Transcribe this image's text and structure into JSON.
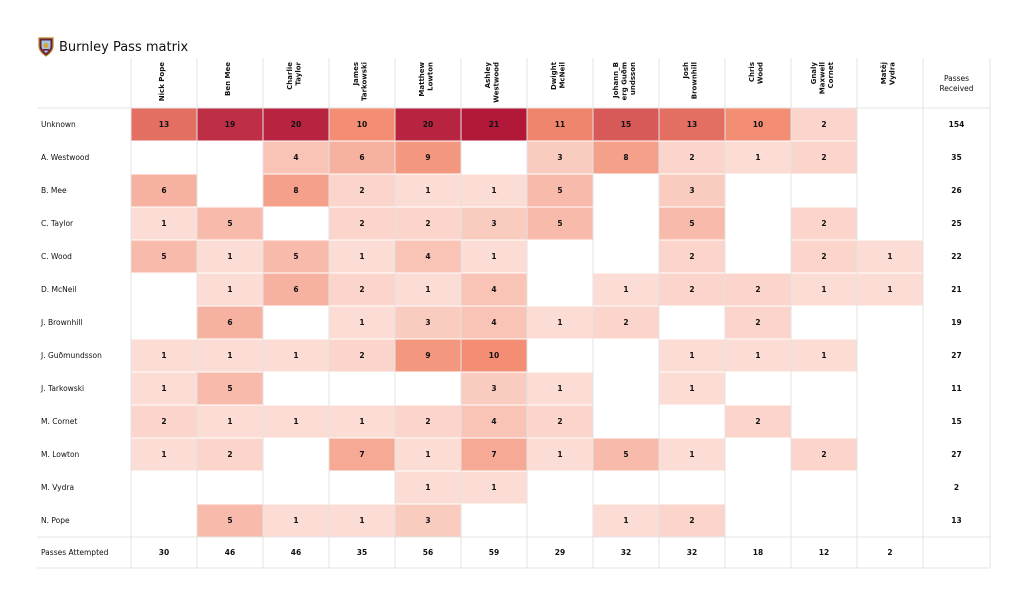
{
  "title": "Burnley Pass matrix",
  "logo": "burnley-crest",
  "colors": {
    "low": "#fde6e1",
    "high": "#b2183a",
    "line": "#dcdcdc"
  },
  "chart_data": {
    "type": "heatmap",
    "title": "Burnley Pass matrix",
    "columns": [
      [
        "Nick Pope"
      ],
      [
        "Ben Mee"
      ],
      [
        "Charlie",
        "Taylor"
      ],
      [
        "James",
        "Tarkowski"
      ],
      [
        "Matthew",
        "Lowton"
      ],
      [
        "Ashley",
        "Westwood"
      ],
      [
        "Dwight",
        "McNeil"
      ],
      [
        "Johann_B",
        "erg Guðm",
        "undsson"
      ],
      [
        "Josh",
        "Brownhill"
      ],
      [
        "Chris",
        "Wood"
      ],
      [
        "Gnaly",
        "Maxwell",
        "Cornet"
      ],
      [
        "Matěj",
        "Vydra"
      ]
    ],
    "passes_received_label": [
      "Passes",
      "Received"
    ],
    "passes_attempted_label": "Passes Attempted",
    "rows": [
      "Unknown",
      "A. Westwood",
      "B. Mee",
      "C. Taylor",
      "C. Wood",
      "D. McNeil",
      "J. Brownhill",
      "J. Guðmundsson",
      "J. Tarkowski",
      "M. Cornet",
      "M. Lowton",
      "M. Vydra",
      "N. Pope"
    ],
    "values": [
      [
        13,
        19,
        20,
        10,
        20,
        21,
        11,
        15,
        13,
        10,
        2,
        null
      ],
      [
        null,
        null,
        4,
        6,
        9,
        null,
        3,
        8,
        2,
        1,
        2,
        null
      ],
      [
        6,
        null,
        8,
        2,
        1,
        1,
        5,
        null,
        3,
        null,
        null,
        null
      ],
      [
        1,
        5,
        null,
        2,
        2,
        3,
        5,
        null,
        5,
        null,
        2,
        null
      ],
      [
        5,
        1,
        5,
        1,
        4,
        1,
        null,
        null,
        2,
        null,
        2,
        1
      ],
      [
        null,
        1,
        6,
        2,
        1,
        4,
        null,
        1,
        2,
        2,
        1,
        1
      ],
      [
        null,
        6,
        null,
        1,
        3,
        4,
        1,
        2,
        null,
        2,
        null,
        null
      ],
      [
        1,
        1,
        1,
        2,
        9,
        10,
        null,
        null,
        1,
        1,
        1,
        null
      ],
      [
        1,
        5,
        null,
        null,
        null,
        3,
        1,
        null,
        1,
        null,
        null,
        null
      ],
      [
        2,
        1,
        1,
        1,
        2,
        4,
        2,
        null,
        null,
        2,
        null,
        null
      ],
      [
        1,
        2,
        null,
        7,
        1,
        7,
        1,
        5,
        1,
        null,
        2,
        null
      ],
      [
        null,
        null,
        null,
        null,
        1,
        1,
        null,
        null,
        null,
        null,
        null,
        null
      ],
      [
        null,
        5,
        1,
        1,
        3,
        null,
        null,
        1,
        2,
        null,
        null,
        null
      ]
    ],
    "passes_received": [
      154,
      35,
      26,
      25,
      22,
      21,
      19,
      27,
      11,
      15,
      27,
      2,
      13
    ],
    "passes_attempted": [
      30,
      46,
      46,
      35,
      56,
      59,
      29,
      32,
      32,
      18,
      12,
      2
    ]
  }
}
